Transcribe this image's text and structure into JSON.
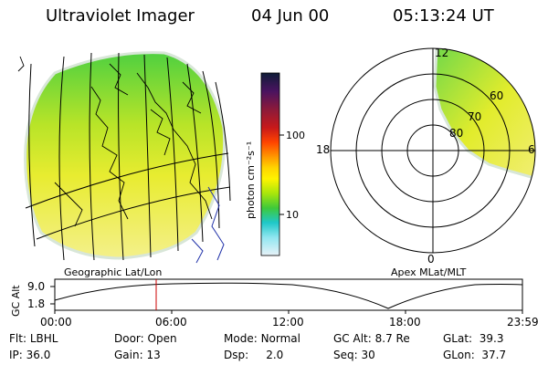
{
  "header": {
    "title": "Ultraviolet Imager",
    "date": "04 Jun 00",
    "time": "05:13:24 UT"
  },
  "colorbar": {
    "unit_label": "photon cm⁻²s⁻¹",
    "ticks": [
      "100",
      "10"
    ],
    "scale": "log",
    "stops": [
      "#0f1d38",
      "#4a1360",
      "#8c1a3a",
      "#c8191a",
      "#ff4400",
      "#ff9900",
      "#ffd400",
      "#fff300",
      "#a8e60c",
      "#3ec93a",
      "#1fc8c8",
      "#8fe6f0",
      "#e8f2f8"
    ]
  },
  "left_panel": {
    "caption": "Geographic Lat/Lon",
    "image_color_top": "#4fd040",
    "image_color_mid": "#d8e820",
    "image_color_low": "#f4f08a"
  },
  "right_panel": {
    "caption": "Apex MLat/MLT",
    "mlt_labels": {
      "top": "12",
      "left": "18",
      "right": "6",
      "bottom": "0"
    },
    "mlat_labels": [
      "60",
      "70",
      "80"
    ]
  },
  "altitude_plot": {
    "ylabel": "GC Alt",
    "yticks": [
      "9.0",
      "1.8"
    ],
    "xticks": [
      "00:00",
      "06:00",
      "12:00",
      "18:00",
      "23:59"
    ],
    "marker_color": "#cc0000",
    "marker_time_hours": 5.22
  },
  "footer": {
    "row1": [
      {
        "label": "Flt:",
        "value": "LBHL"
      },
      {
        "label": "Door:",
        "value": "Open"
      },
      {
        "label": "Mode:",
        "value": "Normal"
      },
      {
        "label": "GC Alt:",
        "value": "8.7 Re"
      },
      {
        "label": "GLat:",
        "value": "39.3"
      }
    ],
    "row2": [
      {
        "label": "IP:",
        "value": "36.0"
      },
      {
        "label": "Gain:",
        "value": "13"
      },
      {
        "label": "Dsp:",
        "value": "2.0"
      },
      {
        "label": "Seq:",
        "value": "30"
      },
      {
        "label": "GLon:",
        "value": "37.7"
      }
    ]
  }
}
